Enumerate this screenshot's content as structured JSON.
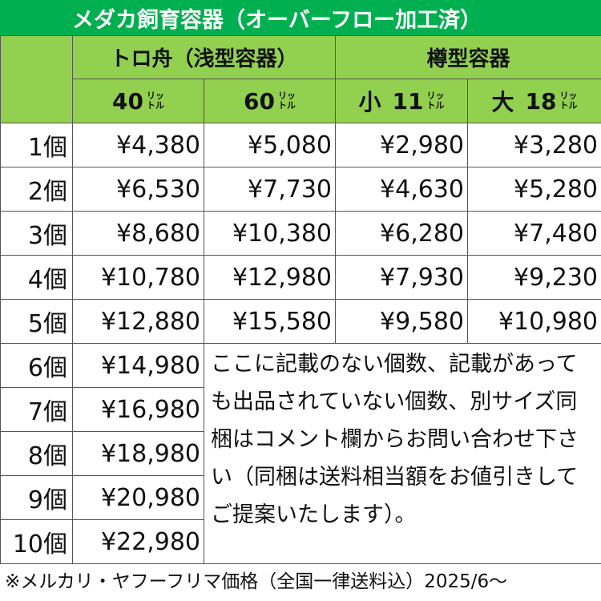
{
  "header": {
    "title": "メダカ飼育容器（オーバーフロー加工済）"
  },
  "table": {
    "groups": [
      "トロ舟（浅型容器）",
      "樽型容器"
    ],
    "columns": [
      {
        "size": "40",
        "unit_top": "リッ",
        "unit_bottom": "トル"
      },
      {
        "size": "60",
        "unit_top": "リッ",
        "unit_bottom": "トル"
      },
      {
        "prefix": "小",
        "size": "11",
        "unit_top": "リッ",
        "unit_bottom": "トル"
      },
      {
        "prefix": "大",
        "size": "18",
        "unit_top": "リッ",
        "unit_bottom": "トル"
      }
    ],
    "rows": [
      [
        "1個",
        "¥4,380",
        "¥5,080",
        "¥2,980",
        "¥3,280"
      ],
      [
        "2個",
        "¥6,530",
        "¥7,730",
        "¥4,630",
        "¥5,280"
      ],
      [
        "3個",
        "¥8,680",
        "¥10,380",
        "¥6,280",
        "¥7,480"
      ],
      [
        "4個",
        "¥10,780",
        "¥12,980",
        "¥7,930",
        "¥9,230"
      ],
      [
        "5個",
        "¥12,880",
        "¥15,580",
        "¥9,580",
        "¥10,980"
      ],
      [
        "6個",
        "¥14,980"
      ],
      [
        "7個",
        "¥16,980"
      ],
      [
        "8個",
        "¥18,980"
      ],
      [
        "9個",
        "¥20,980"
      ],
      [
        "10個",
        "¥22,980"
      ]
    ],
    "note": "ここに記載のない個数、記載があっても出品されていない個数、別サイズ同梱はコメント欄からお問い合わせ下さい（同梱は送料相当額をお値引きしてご提案いたします）。"
  },
  "footer": "※メルカリ・ヤフーフリマ価格（全国一律送料込）2025/6～"
}
